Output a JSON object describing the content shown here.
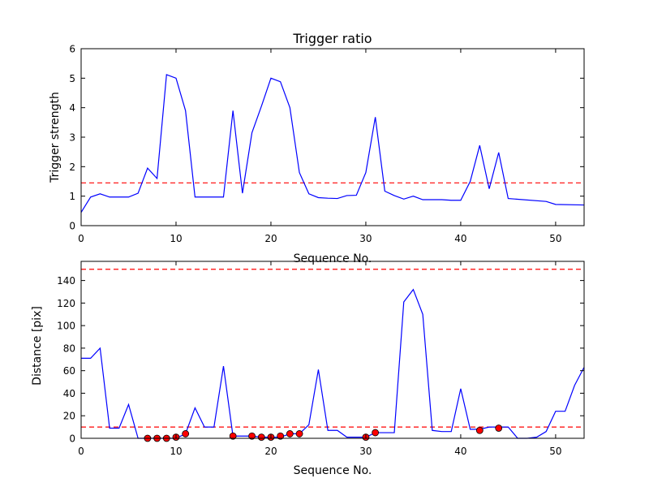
{
  "chart_data": [
    {
      "type": "line",
      "title": "Trigger ratio",
      "xlabel": "Sequence No.",
      "ylabel": "Trigger strength",
      "xlim": [
        0,
        53
      ],
      "ylim": [
        0,
        6
      ],
      "xticks": [
        0,
        10,
        20,
        30,
        40,
        50
      ],
      "yticks": [
        0,
        1,
        2,
        3,
        4,
        5,
        6
      ],
      "threshold": 1.45,
      "series": [
        {
          "color": "#0000ff",
          "x": [
            0,
            1,
            2,
            3,
            4,
            5,
            6,
            7,
            8,
            9,
            10,
            11,
            12,
            13,
            14,
            15,
            16,
            17,
            18,
            19,
            20,
            21,
            22,
            23,
            24,
            25,
            26,
            27,
            28,
            29,
            30,
            31,
            32,
            33,
            34,
            35,
            36,
            37,
            38,
            39,
            40,
            41,
            42,
            43,
            44,
            45,
            49,
            50,
            53
          ],
          "y": [
            0.45,
            0.97,
            1.08,
            0.97,
            0.97,
            0.97,
            1.1,
            1.95,
            1.6,
            5.12,
            5.0,
            3.9,
            0.97,
            0.97,
            0.97,
            0.97,
            3.9,
            1.1,
            3.15,
            4.05,
            5.0,
            4.88,
            4.0,
            1.8,
            1.08,
            0.95,
            0.93,
            0.92,
            1.02,
            1.03,
            1.8,
            3.68,
            1.17,
            1.02,
            0.9,
            1.0,
            0.88,
            0.88,
            0.88,
            0.86,
            0.86,
            1.5,
            2.72,
            1.25,
            2.48,
            0.92,
            0.82,
            0.72,
            0.7
          ]
        }
      ]
    },
    {
      "type": "line",
      "title": "",
      "xlabel": "Sequence No.",
      "ylabel": "Distance [pix]",
      "xlim": [
        0,
        53
      ],
      "ylim": [
        0,
        157
      ],
      "xticks": [
        0,
        10,
        20,
        30,
        40,
        50
      ],
      "yticks": [
        0,
        20,
        40,
        60,
        80,
        100,
        120,
        140
      ],
      "thresholds": [
        10,
        150
      ],
      "series": [
        {
          "color": "#0000ff",
          "x": [
            0,
            1,
            2,
            3,
            4,
            5,
            6,
            7,
            8,
            9,
            10,
            11,
            12,
            13,
            14,
            15,
            16,
            17,
            18,
            19,
            20,
            21,
            22,
            23,
            24,
            25,
            26,
            27,
            28,
            29,
            30,
            31,
            32,
            33,
            34,
            35,
            36,
            37,
            38,
            39,
            40,
            41,
            42,
            43,
            44,
            45,
            46,
            47,
            48,
            49,
            50,
            51,
            52,
            53
          ],
          "y": [
            71,
            71,
            80,
            9,
            9,
            30,
            0,
            0,
            0,
            0,
            0,
            4,
            27,
            10,
            10,
            64,
            2,
            2,
            2,
            1,
            1,
            1,
            4,
            4,
            12,
            61,
            7,
            7,
            1,
            1,
            1,
            5,
            5,
            5,
            121,
            132,
            110,
            7,
            6,
            6,
            44,
            8,
            8,
            10,
            10,
            10,
            0,
            0,
            1,
            6,
            24,
            24,
            47,
            63
          ]
        },
        {
          "name": "",
          "marker": "circle",
          "color": "#ff0000",
          "x": [
            7,
            8,
            9,
            10,
            11,
            16,
            18,
            19,
            20,
            21,
            22,
            23,
            30,
            31,
            42,
            44
          ],
          "y": [
            0,
            0,
            0,
            1,
            4,
            2,
            2,
            1,
            1,
            2,
            4,
            4,
            1,
            5,
            7,
            9
          ]
        }
      ]
    }
  ]
}
